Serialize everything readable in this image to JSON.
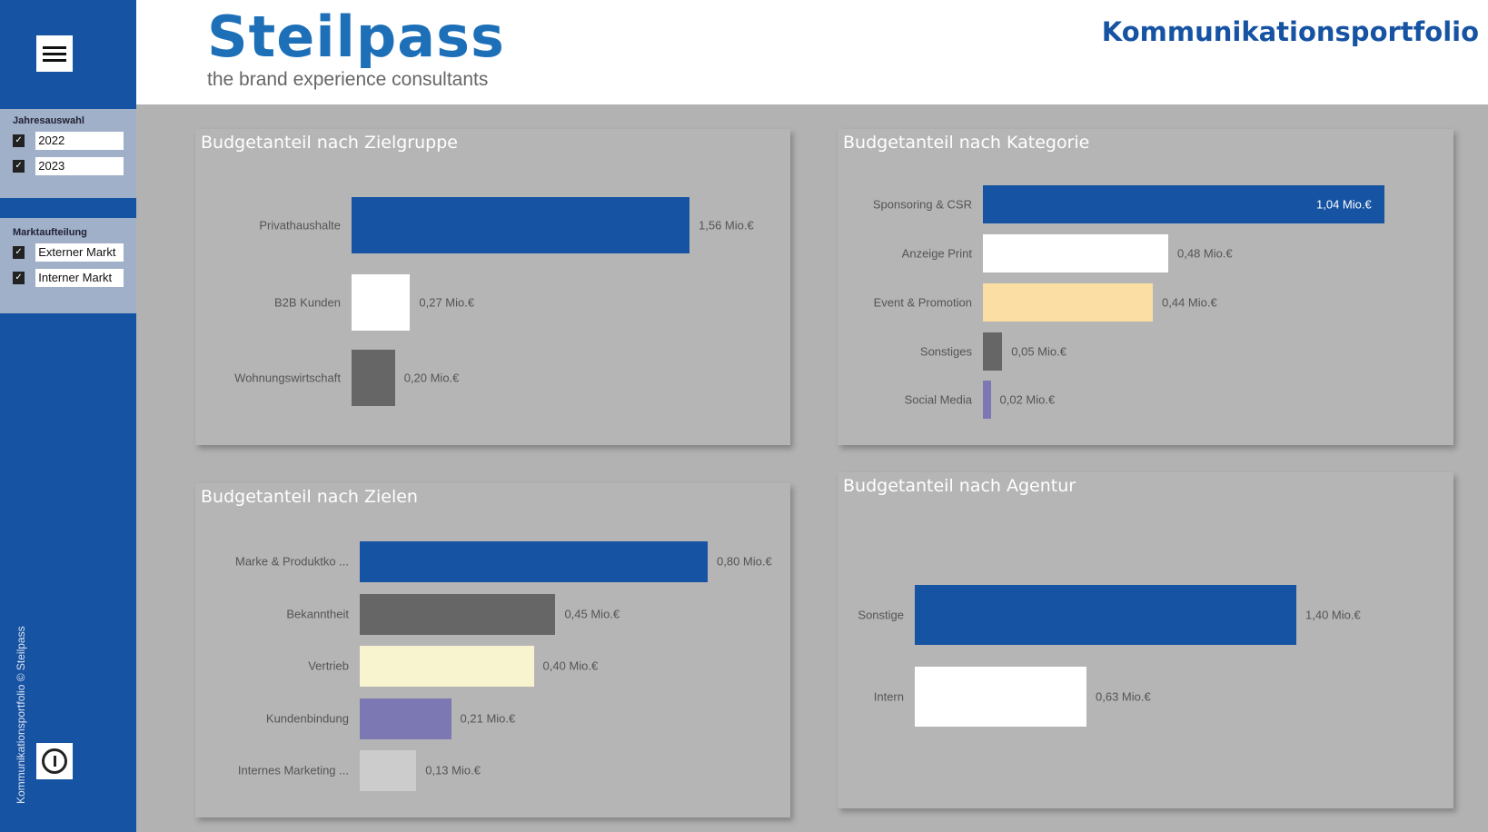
{
  "sidebar": {
    "year_filter": {
      "title": "Jahresauswahl",
      "items": [
        {
          "label": "2022",
          "checked": true
        },
        {
          "label": "2023",
          "checked": true
        }
      ]
    },
    "market_filter": {
      "title": "Marktaufteilung",
      "items": [
        {
          "label": "Externer Markt",
          "checked": true
        },
        {
          "label": "Interner Markt",
          "checked": true
        }
      ]
    },
    "vertical_text": "Kommunikationsportfolio © Steilpass",
    "menu_icon": "hamburger-icon",
    "info_icon": "power-info-icon"
  },
  "header": {
    "logo": "Steilpass",
    "tagline": "the brand experience consultants",
    "title": "Kommunikationsportfolio"
  },
  "colors": {
    "accent": "#1753a3",
    "panel": "#b5b5b5",
    "background": "#b2b2b2"
  },
  "chart_data": [
    {
      "type": "bar",
      "orientation": "horizontal",
      "title": "Budgetanteil nach Zielgruppe",
      "unit": "Mio.€",
      "categories": [
        "Privathaushalte",
        "B2B Kunden",
        "Wohnungswirtschaft"
      ],
      "values": [
        1.56,
        0.27,
        0.2
      ],
      "labels": [
        "1,56 Mio.€",
        "0,27 Mio.€",
        "0,20 Mio.€"
      ],
      "colors": [
        "#1753a3",
        "#ffffff",
        "#666666"
      ]
    },
    {
      "type": "bar",
      "orientation": "horizontal",
      "title": "Budgetanteil nach Kategorie",
      "unit": "Mio.€",
      "categories": [
        "Sponsoring & CSR",
        "Anzeige Print",
        "Event & Promotion",
        "Sonstiges",
        "Social Media"
      ],
      "values": [
        1.04,
        0.48,
        0.44,
        0.05,
        0.02
      ],
      "labels": [
        "1,04 Mio.€",
        "0,48 Mio.€",
        "0,44 Mio.€",
        "0,05 Mio.€",
        "0,02 Mio.€"
      ],
      "colors": [
        "#1753a3",
        "#ffffff",
        "#fbdea3",
        "#666666",
        "#7b78b4"
      ]
    },
    {
      "type": "bar",
      "orientation": "horizontal",
      "title": "Budgetanteil nach Zielen",
      "unit": "Mio.€",
      "categories": [
        "Marke & Produktko ...",
        "Bekanntheit",
        "Vertrieb",
        "Kundenbindung",
        "Internes Marketing ..."
      ],
      "values": [
        0.8,
        0.45,
        0.4,
        0.21,
        0.13
      ],
      "labels": [
        "0,80 Mio.€",
        "0,45 Mio.€",
        "0,40 Mio.€",
        "0,21 Mio.€",
        "0,13 Mio.€"
      ],
      "colors": [
        "#1753a3",
        "#666666",
        "#f9f4d0",
        "#7b78b4",
        "#cccccc"
      ]
    },
    {
      "type": "bar",
      "orientation": "horizontal",
      "title": "Budgetanteil nach Agentur",
      "unit": "Mio.€",
      "categories": [
        "Sonstige",
        "Intern"
      ],
      "values": [
        1.4,
        0.63
      ],
      "labels": [
        "1,40 Mio.€",
        "0,63 Mio.€"
      ],
      "colors": [
        "#1753a3",
        "#ffffff"
      ]
    }
  ]
}
